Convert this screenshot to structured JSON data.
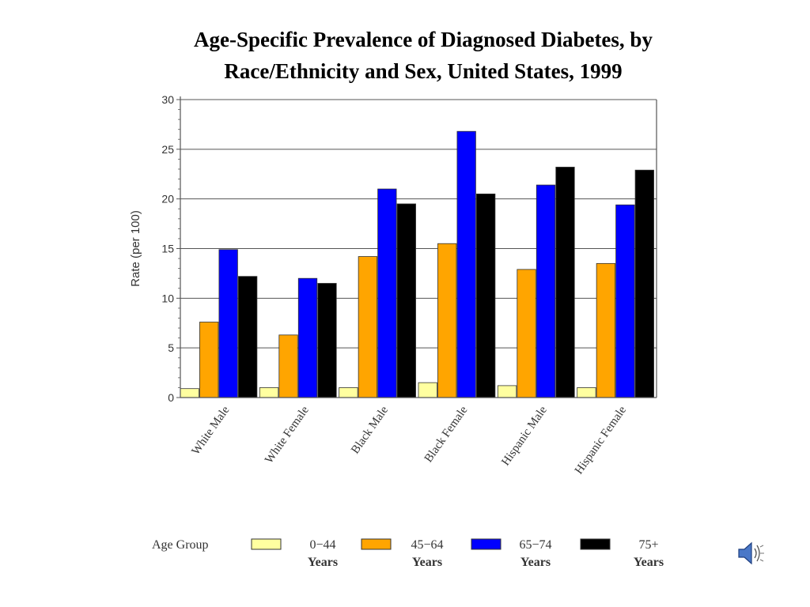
{
  "title_line1": "Age-Specific Prevalence of Diagnosed Diabetes, by",
  "title_line2": "Race/Ethnicity and Sex, United States, 1999",
  "chart_data": {
    "type": "bar",
    "title": "Age-Specific Prevalence of Diagnosed Diabetes, by Race/Ethnicity and Sex, United States, 1999",
    "ylabel": "Rate (per 100)",
    "xlabel": "",
    "ylim": [
      0,
      30
    ],
    "yticks": [
      0,
      5,
      10,
      15,
      20,
      25,
      30
    ],
    "grid": true,
    "categories": [
      "White Male",
      "White Female",
      "Black Male",
      "Black Female",
      "Hispanic Male",
      "Hispanic Female"
    ],
    "legend_title": "Age Group",
    "legend_position": "bottom",
    "series": [
      {
        "name_line1": "0−44",
        "name_line2": "Years",
        "color": "#FFFFA0",
        "values": [
          0.9,
          1.0,
          1.0,
          1.5,
          1.2,
          1.0
        ]
      },
      {
        "name_line1": "45−64",
        "name_line2": "Years",
        "color": "#FFA500",
        "values": [
          7.6,
          6.3,
          14.2,
          15.5,
          12.9,
          13.5
        ]
      },
      {
        "name_line1": "65−74",
        "name_line2": "Years",
        "color": "#0000FF",
        "values": [
          14.9,
          12.0,
          21.0,
          26.8,
          21.4,
          19.4
        ]
      },
      {
        "name_line1": "75+",
        "name_line2": "Years",
        "color": "#000000",
        "values": [
          12.2,
          11.5,
          19.5,
          20.5,
          23.2,
          22.9
        ]
      }
    ]
  },
  "icons": {
    "speaker": "speaker-icon"
  }
}
